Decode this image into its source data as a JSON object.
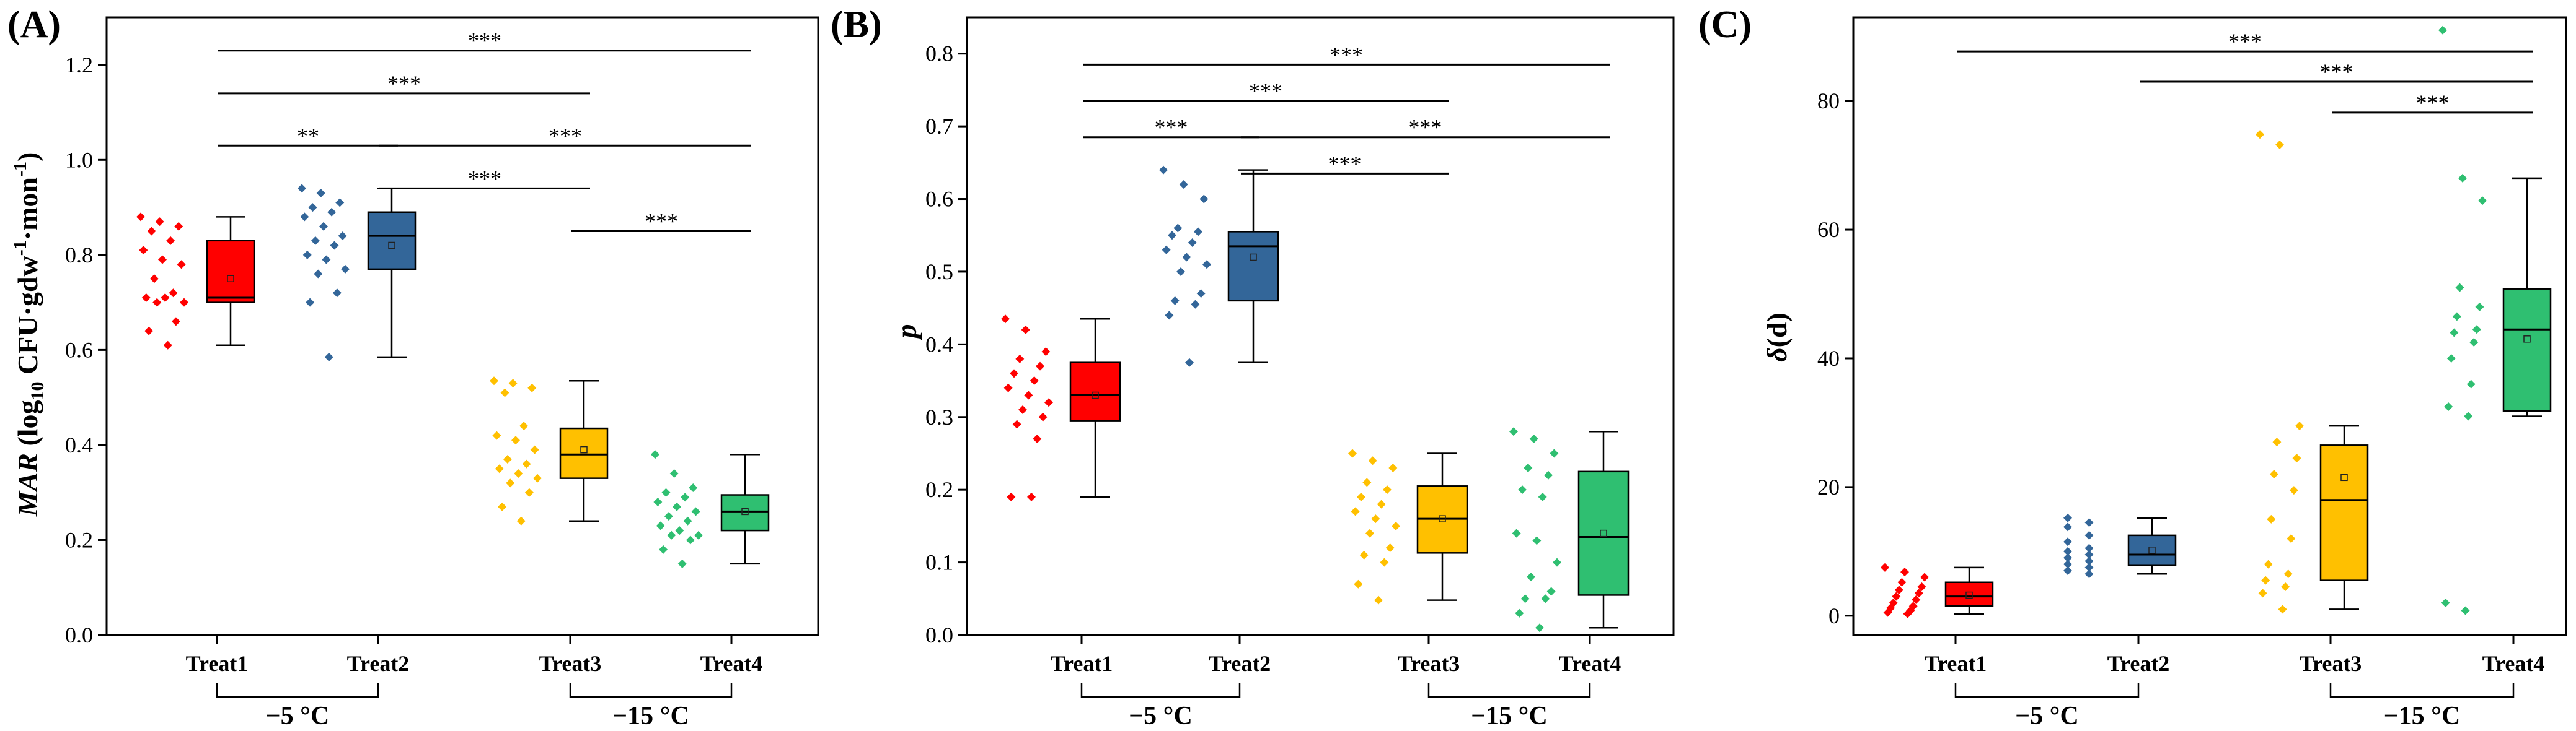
{
  "chart_data": [
    {
      "type": "box",
      "panel_label": "(A)",
      "ylabel_italic": "MAR",
      "ylabel_rest": " (log",
      "ylabel_sub": "10",
      "ylabel_mid": " CFU·gdw",
      "ylabel_sup1": "-1",
      "ylabel_mid2": "·mon",
      "ylabel_sup2": "-1",
      "ylabel_end": ")",
      "ylim": [
        0,
        1.3
      ],
      "yticks": [
        0.0,
        0.2,
        0.4,
        0.6,
        0.8,
        1.0,
        1.2
      ],
      "ytick_labels": [
        "0.0",
        "0.2",
        "0.4",
        "0.6",
        "0.8",
        "1.0",
        "1.2"
      ],
      "categories": [
        "Treat1",
        "Treat2",
        "Treat3",
        "Treat4"
      ],
      "groups": [
        {
          "label": "−5 °C",
          "members": [
            0,
            1
          ]
        },
        {
          "label": "−15 °C",
          "members": [
            2,
            3
          ]
        }
      ],
      "series": [
        {
          "color": "#ff0000",
          "box": {
            "min": 0.61,
            "q1": 0.7,
            "median": 0.71,
            "q3": 0.83,
            "max": 0.88,
            "mean": 0.75
          },
          "points": [
            0.88,
            0.87,
            0.86,
            0.85,
            0.83,
            0.81,
            0.79,
            0.78,
            0.75,
            0.72,
            0.71,
            0.71,
            0.7,
            0.7,
            0.66,
            0.64,
            0.61
          ]
        },
        {
          "color": "#336699",
          "box": {
            "min": 0.585,
            "q1": 0.77,
            "median": 0.84,
            "q3": 0.89,
            "max": 0.94,
            "mean": 0.82
          },
          "points": [
            0.94,
            0.93,
            0.91,
            0.9,
            0.89,
            0.88,
            0.86,
            0.84,
            0.83,
            0.82,
            0.8,
            0.79,
            0.77,
            0.76,
            0.72,
            0.7,
            0.585
          ]
        },
        {
          "color": "#ffc000",
          "box": {
            "min": 0.24,
            "q1": 0.33,
            "median": 0.38,
            "q3": 0.435,
            "max": 0.535,
            "mean": 0.39
          },
          "points": [
            0.535,
            0.53,
            0.52,
            0.51,
            0.44,
            0.42,
            0.41,
            0.39,
            0.37,
            0.36,
            0.35,
            0.34,
            0.33,
            0.32,
            0.3,
            0.27,
            0.24
          ]
        },
        {
          "color": "#2fbf71",
          "box": {
            "min": 0.15,
            "q1": 0.22,
            "median": 0.26,
            "q3": 0.295,
            "max": 0.38,
            "mean": 0.26
          },
          "points": [
            0.38,
            0.34,
            0.31,
            0.3,
            0.29,
            0.28,
            0.27,
            0.26,
            0.25,
            0.24,
            0.23,
            0.22,
            0.21,
            0.21,
            0.2,
            0.18,
            0.15
          ]
        }
      ],
      "significance": [
        {
          "from": 0,
          "to": 3,
          "label": "***",
          "y": 1.23
        },
        {
          "from": 0,
          "to": 2,
          "label": "***",
          "y": 1.14
        },
        {
          "from": 0,
          "to": 1,
          "label": "**",
          "y": 1.03
        },
        {
          "from": 1,
          "to": 3,
          "label": "***",
          "y": 1.03
        },
        {
          "from": 1,
          "to": 2,
          "label": "***",
          "y": 0.94
        },
        {
          "from": 2,
          "to": 3,
          "label": "***",
          "y": 0.85
        }
      ]
    },
    {
      "type": "box",
      "panel_label": "(B)",
      "ylabel_italic": "p",
      "ylim": [
        0,
        0.85
      ],
      "yticks": [
        0.0,
        0.1,
        0.2,
        0.3,
        0.4,
        0.5,
        0.6,
        0.7,
        0.8
      ],
      "ytick_labels": [
        "0.0",
        "0.1",
        "0.2",
        "0.3",
        "0.4",
        "0.5",
        "0.6",
        "0.7",
        "0.8"
      ],
      "categories": [
        "Treat1",
        "Treat2",
        "Treat3",
        "Treat4"
      ],
      "groups": [
        {
          "label": "−5 °C",
          "members": [
            0,
            1
          ]
        },
        {
          "label": "−15 °C",
          "members": [
            2,
            3
          ]
        }
      ],
      "series": [
        {
          "color": "#ff0000",
          "box": {
            "min": 0.19,
            "q1": 0.295,
            "median": 0.33,
            "q3": 0.375,
            "max": 0.435,
            "mean": 0.33
          },
          "points": [
            0.435,
            0.42,
            0.39,
            0.38,
            0.37,
            0.36,
            0.35,
            0.34,
            0.33,
            0.32,
            0.31,
            0.3,
            0.29,
            0.27,
            0.19,
            0.19
          ]
        },
        {
          "color": "#336699",
          "box": {
            "min": 0.375,
            "q1": 0.46,
            "median": 0.535,
            "q3": 0.555,
            "max": 0.64,
            "mean": 0.52
          },
          "points": [
            0.64,
            0.62,
            0.6,
            0.56,
            0.555,
            0.55,
            0.54,
            0.53,
            0.52,
            0.51,
            0.5,
            0.47,
            0.46,
            0.455,
            0.44,
            0.375
          ]
        },
        {
          "color": "#ffc000",
          "box": {
            "min": 0.048,
            "q1": 0.113,
            "median": 0.16,
            "q3": 0.205,
            "max": 0.25,
            "mean": 0.16
          },
          "points": [
            0.25,
            0.24,
            0.23,
            0.21,
            0.2,
            0.19,
            0.18,
            0.17,
            0.16,
            0.15,
            0.14,
            0.12,
            0.11,
            0.1,
            0.07,
            0.048
          ]
        },
        {
          "color": "#2fbf71",
          "box": {
            "min": 0.01,
            "q1": 0.055,
            "median": 0.135,
            "q3": 0.225,
            "max": 0.28,
            "mean": 0.14
          },
          "points": [
            0.28,
            0.27,
            0.25,
            0.23,
            0.22,
            0.2,
            0.19,
            0.14,
            0.13,
            0.1,
            0.08,
            0.06,
            0.05,
            0.05,
            0.03,
            0.01
          ]
        }
      ],
      "significance": [
        {
          "from": 0,
          "to": 3,
          "label": "***",
          "y": 0.785
        },
        {
          "from": 0,
          "to": 2,
          "label": "***",
          "y": 0.735
        },
        {
          "from": 0,
          "to": 1,
          "label": "***",
          "y": 0.685
        },
        {
          "from": 1,
          "to": 3,
          "label": "***",
          "y": 0.685
        },
        {
          "from": 1,
          "to": 2,
          "label": "***",
          "y": 0.635
        }
      ]
    },
    {
      "type": "box",
      "panel_label": "(C)",
      "ylabel_italic": "δ",
      "ylabel_rest": "(d)",
      "ylim": [
        -3,
        93
      ],
      "yticks": [
        0,
        20,
        40,
        60,
        80
      ],
      "ytick_labels": [
        "0",
        "20",
        "40",
        "60",
        "80"
      ],
      "categories": [
        "Treat1",
        "Treat2",
        "Treat3",
        "Treat4"
      ],
      "groups": [
        {
          "label": "−5 °C",
          "members": [
            0,
            1
          ]
        },
        {
          "label": "−15 °C",
          "members": [
            2,
            3
          ]
        }
      ],
      "series": [
        {
          "color": "#ff0000",
          "box": {
            "min": 0.3,
            "q1": 1.5,
            "median": 3.0,
            "q3": 5.2,
            "max": 7.5,
            "mean": 3.2
          },
          "points": [
            7.5,
            6.8,
            6.0,
            5.2,
            4.5,
            4.0,
            3.5,
            3.0,
            2.5,
            2.0,
            1.5,
            1.2,
            0.8,
            0.5,
            0.3
          ]
        },
        {
          "color": "#336699",
          "box": {
            "min": 6.5,
            "q1": 7.8,
            "median": 9.5,
            "q3": 12.5,
            "max": 15.2,
            "mean": 10.2
          },
          "points": [
            15.2,
            14.5,
            13.8,
            12.5,
            11.5,
            10.5,
            10.0,
            9.5,
            9.0,
            8.5,
            8.0,
            7.5,
            7.0,
            6.5
          ]
        },
        {
          "color": "#ffc000",
          "box": {
            "min": 1.0,
            "q1": 5.5,
            "median": 18.0,
            "q3": 26.5,
            "max": 29.5,
            "mean": 21.5
          },
          "points": [
            74.8,
            73.2,
            29.5,
            27.0,
            24.5,
            22.0,
            19.5,
            15.0,
            12.0,
            8.0,
            6.5,
            5.5,
            4.5,
            3.5,
            1.0
          ]
        },
        {
          "color": "#2fbf71",
          "box": {
            "min": 31.0,
            "q1": 31.8,
            "median": 44.5,
            "q3": 50.8,
            "max": 68.0,
            "mean": 43.0
          },
          "points": [
            91.0,
            68.0,
            64.5,
            51.0,
            48.0,
            46.5,
            44.5,
            44.0,
            42.5,
            40.0,
            36.0,
            32.5,
            31.0,
            2.0,
            0.8
          ]
        }
      ],
      "significance": [
        {
          "from": 0,
          "to": 3,
          "label": "***",
          "y": 87.7
        },
        {
          "from": 1,
          "to": 3,
          "label": "***",
          "y": 83.0
        },
        {
          "from": 2,
          "to": 3,
          "label": "***",
          "y": 78.2
        }
      ]
    }
  ]
}
